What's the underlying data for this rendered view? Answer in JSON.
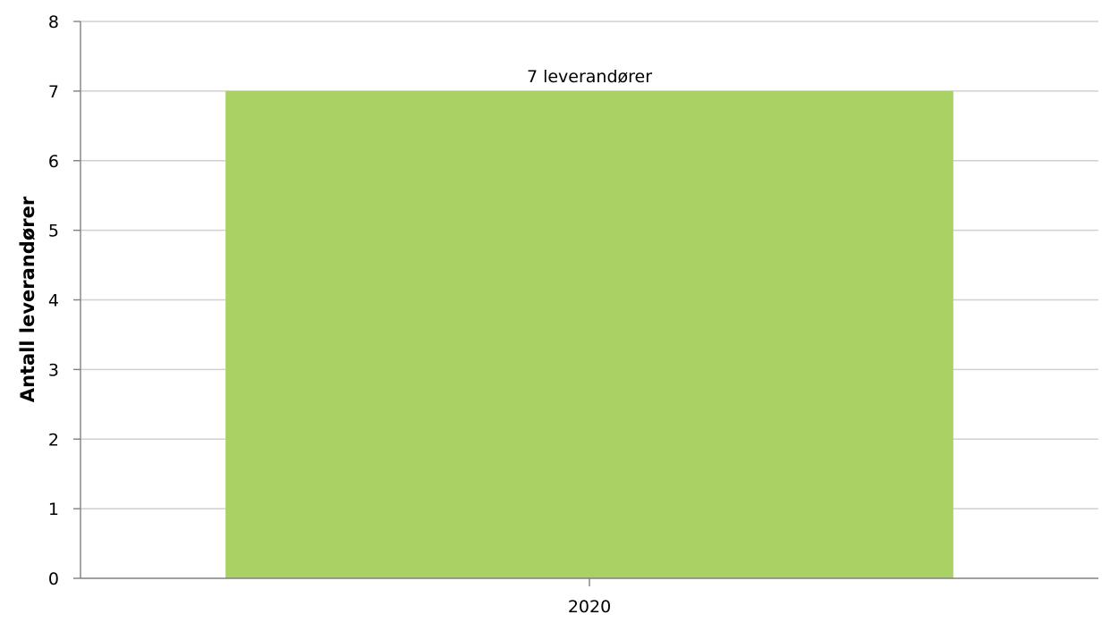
{
  "chart_data": {
    "type": "bar",
    "categories": [
      "2020"
    ],
    "series": [
      {
        "values": [
          7
        ],
        "data_labels": [
          "7 leverandører"
        ],
        "color": "#a9d163"
      }
    ],
    "title": "",
    "xlabel": "",
    "ylabel": "Antall leverandører",
    "ylim": [
      0,
      8
    ],
    "yticks": [
      0,
      1,
      2,
      3,
      4,
      5,
      6,
      7,
      8
    ],
    "grid": true,
    "legend": "none"
  },
  "colors": {
    "bar": "#a9d163",
    "grid": "#d0d0d0",
    "axis": "#808080"
  }
}
